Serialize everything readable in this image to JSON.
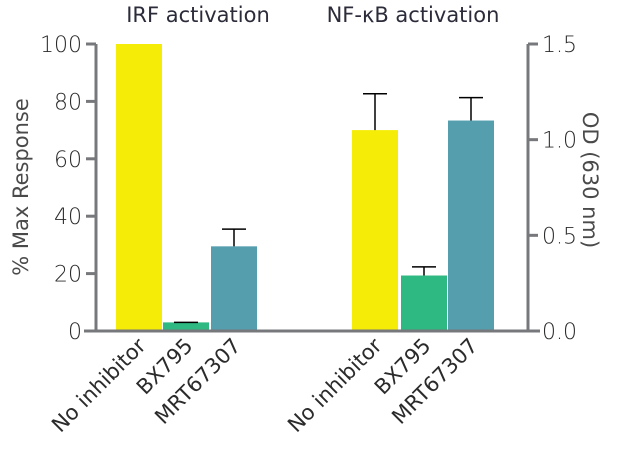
{
  "chart_data": {
    "type": "bar",
    "groups": [
      {
        "title": "IRF activation",
        "axis": "left",
        "categories": [
          "No inhibitor",
          "BX795",
          "MRT67307"
        ],
        "values": [
          100,
          3,
          29.5
        ],
        "error_upper": [
          null,
          3,
          35.5
        ]
      },
      {
        "title": "NF-κB activation",
        "axis": "right",
        "categories": [
          "No inhibitor",
          "BX795",
          "MRT67307"
        ],
        "values": [
          1.05,
          0.29,
          1.1
        ],
        "error_upper": [
          1.24,
          0.335,
          1.22
        ]
      }
    ],
    "colors": [
      "#f5ec07",
      "#2fb982",
      "#549eae"
    ],
    "left_axis": {
      "label": "% Max Response",
      "ylim": [
        0,
        100
      ],
      "ticks": [
        "0",
        "20",
        "40",
        "60",
        "80",
        "100"
      ]
    },
    "right_axis": {
      "label": "OD (630 nm)",
      "ylim": [
        0,
        1.5
      ],
      "ticks": [
        "0.0",
        "0.5",
        "1.0",
        "1.5"
      ]
    },
    "axis_color": "#77787b",
    "grid": false
  }
}
